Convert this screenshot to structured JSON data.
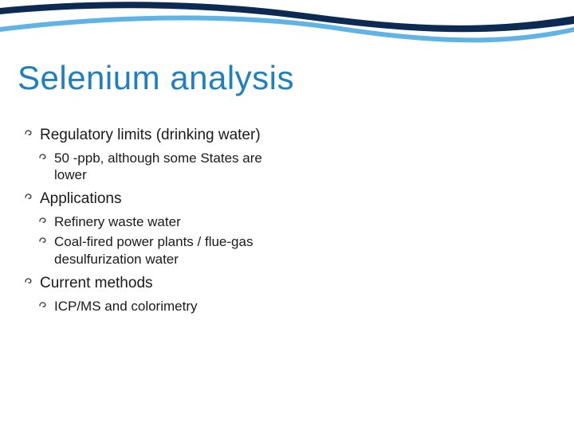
{
  "colors": {
    "title": "#1e7fc2",
    "body": "#1a1a1a",
    "bullet": "#444444",
    "wave_dark": "#0d2b52",
    "wave_light": "#5fb4e5",
    "background": "#ffffff"
  },
  "title": "Selenium analysis",
  "bullet_glyph": "་",
  "sections": [
    {
      "text": "Regulatory limits (drinking water)",
      "children": [
        {
          "text": "50 -ppb, although some States are lower"
        }
      ]
    },
    {
      "text": "Applications",
      "children": [
        {
          "text": "Refinery waste water"
        },
        {
          "text": "Coal-fired power plants / flue-gas desulfurization water"
        }
      ]
    },
    {
      "text": "Current methods",
      "children": [
        {
          "text": "ICP/MS and colorimetry"
        }
      ]
    }
  ]
}
